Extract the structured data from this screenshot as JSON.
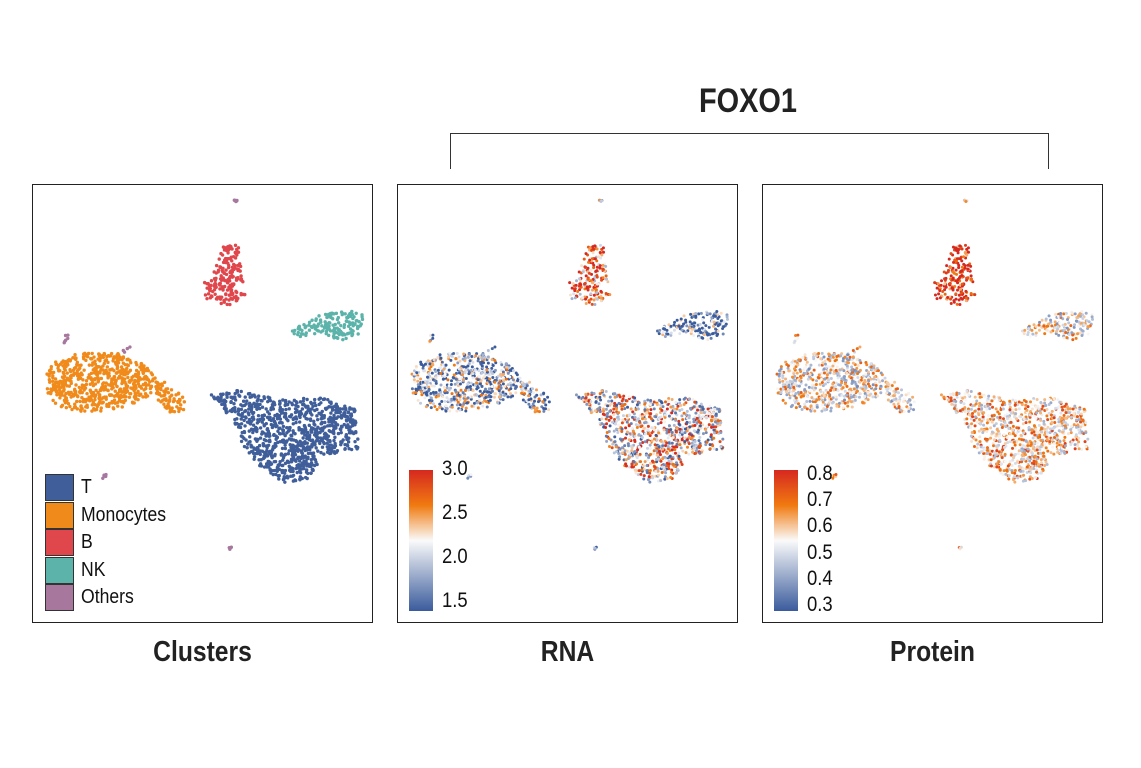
{
  "gene_title": "FOXO1",
  "panels": [
    {
      "label": "Clusters"
    },
    {
      "label": "RNA"
    },
    {
      "label": "Protein"
    }
  ],
  "chart_data": [
    {
      "type": "scatter",
      "title": "Clusters",
      "legend_placement": "bottom-left",
      "legend": [
        {
          "name": "T",
          "color": "#3f5e9a"
        },
        {
          "name": "Monocytes",
          "color": "#f08a1a"
        },
        {
          "name": "B",
          "color": "#e0474c"
        },
        {
          "name": "NK",
          "color": "#5bb3aa"
        },
        {
          "name": "Others",
          "color": "#a7779e"
        }
      ]
    },
    {
      "type": "scatter",
      "title": "RNA",
      "colorbar": {
        "min": 1.4,
        "max": 3.0,
        "ticks": [
          "3.0",
          "2.5",
          "2.0",
          "1.5"
        ]
      },
      "cluster_mean": {
        "T": 2.2,
        "Monocytes": 1.8,
        "B": 2.7,
        "NK": 1.6,
        "Others": 1.7
      }
    },
    {
      "type": "scatter",
      "title": "Protein",
      "colorbar": {
        "min": 0.28,
        "max": 0.82,
        "ticks": [
          "0.8",
          "0.7",
          "0.6",
          "0.5",
          "0.4",
          "0.3"
        ]
      },
      "cluster_mean": {
        "T": 0.6,
        "Monocytes": 0.55,
        "B": 0.8,
        "NK": 0.55,
        "Others": 0.6
      }
    }
  ]
}
